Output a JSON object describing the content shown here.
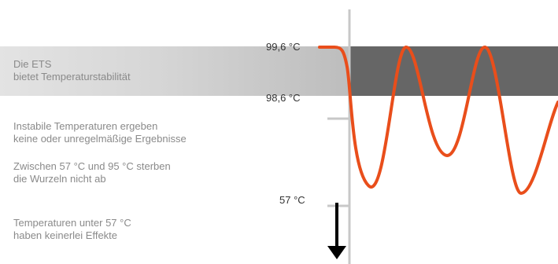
{
  "notes": {
    "stable_line1": "Die ETS",
    "stable_line2": "bietet Temperaturstabilität",
    "unstable_line1": "Instabile Temperaturen ergeben",
    "unstable_line2": "keine oder unregelmäßige Ergebnisse",
    "range_line1": "Zwischen 57 °C und 95 °C sterben",
    "range_line2": "die Wurzeln nicht ab",
    "low_line1": "Temperaturen unter 57 °C",
    "low_line2": "haben keinerlei Effekte"
  },
  "scale_labels": {
    "upper": "99,6 °C",
    "lower": "98,6 °C",
    "min": "57 °C"
  },
  "colors": {
    "curve": "#e94e1b",
    "stable_band": "#666666",
    "axis": "#c8c8c8",
    "arrow": "#000000"
  },
  "icons": {
    "down_arrow": "arrow-down-icon"
  }
}
